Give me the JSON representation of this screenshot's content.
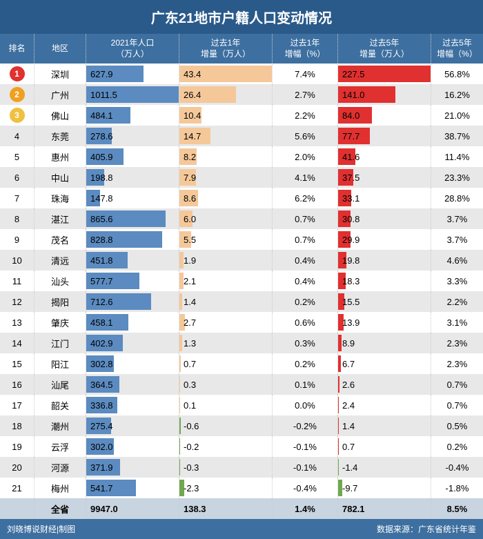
{
  "title": "广东21地市户籍人口变动情况",
  "columns": [
    "排名",
    "地区",
    "2021年人口\n（万人）",
    "过去1年\n增量（万人）",
    "过去1年\n增幅（%）",
    "过去5年\n增量（万人）",
    "过去5年\n增幅（%）"
  ],
  "footer_left": "刘晓博说财经|制图",
  "footer_right": "数据来源：广东省统计年鉴",
  "total_label": "全省",
  "colors": {
    "title_bg": "#2a5a8a",
    "header_bg": "#3d6fa0",
    "row_even": "#ffffff",
    "row_odd": "#e8e8e8",
    "row_total": "#c8d4e0",
    "pop_bar": "#5b8bc0",
    "inc1_bar": "#f5c89a",
    "inc5_bar": "#e03030",
    "neg_bar": "#6fa84f",
    "rank1": "#e03030",
    "rank2": "#f0a020",
    "rank3": "#f0c040"
  },
  "max": {
    "pop": 1011.5,
    "inc1": 43.4,
    "inc5": 227.5
  },
  "rows": [
    {
      "rank": "1",
      "region": "深圳",
      "pop": 627.9,
      "inc1": 43.4,
      "pct1": "7.4%",
      "inc5": 227.5,
      "pct5": "56.8%"
    },
    {
      "rank": "2",
      "region": "广州",
      "pop": 1011.5,
      "inc1": 26.4,
      "pct1": "2.7%",
      "inc5": 141.0,
      "pct5": "16.2%"
    },
    {
      "rank": "3",
      "region": "佛山",
      "pop": 484.1,
      "inc1": 10.4,
      "pct1": "2.2%",
      "inc5": 84.0,
      "pct5": "21.0%"
    },
    {
      "rank": "4",
      "region": "东莞",
      "pop": 278.6,
      "inc1": 14.7,
      "pct1": "5.6%",
      "inc5": 77.7,
      "pct5": "38.7%"
    },
    {
      "rank": "5",
      "region": "惠州",
      "pop": 405.9,
      "inc1": 8.2,
      "pct1": "2.0%",
      "inc5": 41.6,
      "pct5": "11.4%"
    },
    {
      "rank": "6",
      "region": "中山",
      "pop": 198.8,
      "inc1": 7.9,
      "pct1": "4.1%",
      "inc5": 37.5,
      "pct5": "23.3%"
    },
    {
      "rank": "7",
      "region": "珠海",
      "pop": 147.8,
      "inc1": 8.6,
      "pct1": "6.2%",
      "inc5": 33.1,
      "pct5": "28.8%"
    },
    {
      "rank": "8",
      "region": "湛江",
      "pop": 865.6,
      "inc1": 6.0,
      "pct1": "0.7%",
      "inc5": 30.8,
      "pct5": "3.7%"
    },
    {
      "rank": "9",
      "region": "茂名",
      "pop": 828.8,
      "inc1": 5.5,
      "pct1": "0.7%",
      "inc5": 29.9,
      "pct5": "3.7%"
    },
    {
      "rank": "10",
      "region": "清远",
      "pop": 451.8,
      "inc1": 1.9,
      "pct1": "0.4%",
      "inc5": 19.8,
      "pct5": "4.6%"
    },
    {
      "rank": "11",
      "region": "汕头",
      "pop": 577.7,
      "inc1": 2.1,
      "pct1": "0.4%",
      "inc5": 18.3,
      "pct5": "3.3%"
    },
    {
      "rank": "12",
      "region": "揭阳",
      "pop": 712.6,
      "inc1": 1.4,
      "pct1": "0.2%",
      "inc5": 15.5,
      "pct5": "2.2%"
    },
    {
      "rank": "13",
      "region": "肇庆",
      "pop": 458.1,
      "inc1": 2.7,
      "pct1": "0.6%",
      "inc5": 13.9,
      "pct5": "3.1%"
    },
    {
      "rank": "14",
      "region": "江门",
      "pop": 402.9,
      "inc1": 1.3,
      "pct1": "0.3%",
      "inc5": 8.9,
      "pct5": "2.3%"
    },
    {
      "rank": "15",
      "region": "阳江",
      "pop": 302.8,
      "inc1": 0.7,
      "pct1": "0.2%",
      "inc5": 6.7,
      "pct5": "2.3%"
    },
    {
      "rank": "16",
      "region": "汕尾",
      "pop": 364.5,
      "inc1": 0.3,
      "pct1": "0.1%",
      "inc5": 2.6,
      "pct5": "0.7%"
    },
    {
      "rank": "17",
      "region": "韶关",
      "pop": 336.8,
      "inc1": 0.1,
      "pct1": "0.0%",
      "inc5": 2.4,
      "pct5": "0.7%"
    },
    {
      "rank": "18",
      "region": "潮州",
      "pop": 275.4,
      "inc1": -0.6,
      "pct1": "-0.2%",
      "inc5": 1.4,
      "pct5": "0.5%"
    },
    {
      "rank": "19",
      "region": "云浮",
      "pop": 302.0,
      "inc1": -0.2,
      "pct1": "-0.1%",
      "inc5": 0.7,
      "pct5": "0.2%"
    },
    {
      "rank": "20",
      "region": "河源",
      "pop": 371.9,
      "inc1": -0.3,
      "pct1": "-0.1%",
      "inc5": -1.4,
      "pct5": "-0.4%"
    },
    {
      "rank": "21",
      "region": "梅州",
      "pop": 541.7,
      "inc1": -2.3,
      "pct1": "-0.4%",
      "inc5": -9.7,
      "pct5": "-1.8%"
    }
  ],
  "total": {
    "region": "全省",
    "pop": "9947.0",
    "inc1": "138.3",
    "pct1": "1.4%",
    "inc5": "782.1",
    "pct5": "8.5%"
  }
}
